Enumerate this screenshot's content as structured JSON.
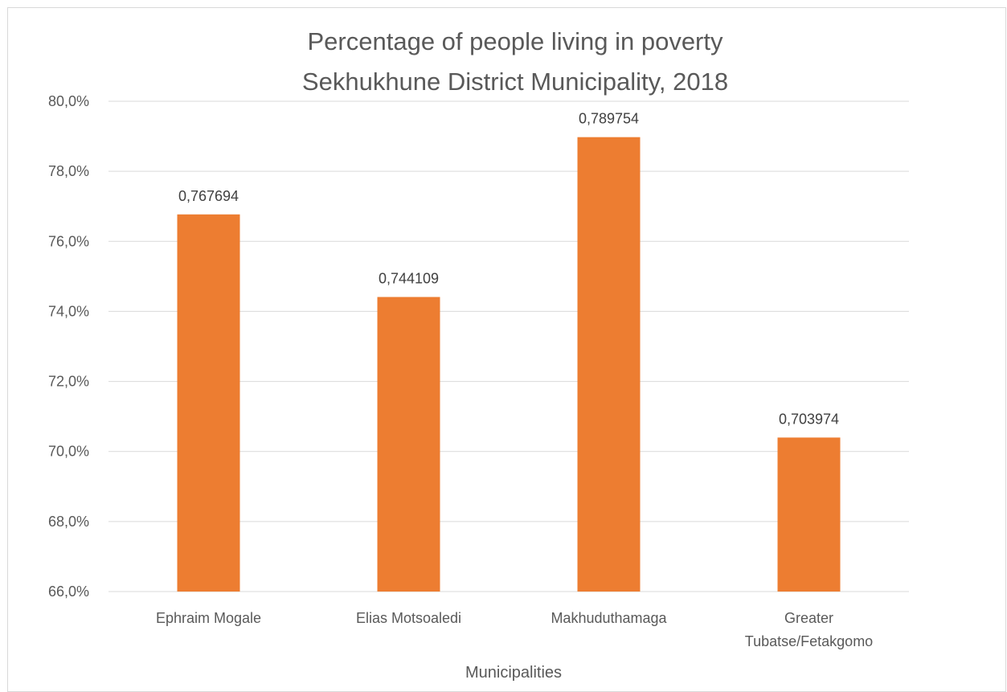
{
  "chart_data": {
    "type": "bar",
    "title": [
      "Percentage of people living in poverty",
      "Sekhukhune District Municipality, 2018"
    ],
    "categories": [
      [
        "Ephraim Mogale"
      ],
      [
        "Elias Motsoaledi"
      ],
      [
        "Makhuduthamaga"
      ],
      [
        "Greater",
        "Tubatse/Fetakgomo"
      ]
    ],
    "values": [
      0.767694,
      0.744109,
      0.789754,
      0.703974
    ],
    "data_labels": [
      "0,767694",
      "0,744109",
      "0,789754",
      "0,703974"
    ],
    "xlabel": "Municipalities",
    "ylabel": "",
    "ylim": [
      0.66,
      0.8
    ],
    "yticks": [
      0.66,
      0.68,
      0.7,
      0.72,
      0.74,
      0.76,
      0.78,
      0.8
    ],
    "ytick_labels": [
      "66,0%",
      "68,0%",
      "70,0%",
      "72,0%",
      "74,0%",
      "76,0%",
      "78,0%",
      "80,0%"
    ],
    "grid": true,
    "bar_color": "#ED7D31",
    "gridline_color": "#D9D9D9",
    "text_color": "#595959"
  }
}
